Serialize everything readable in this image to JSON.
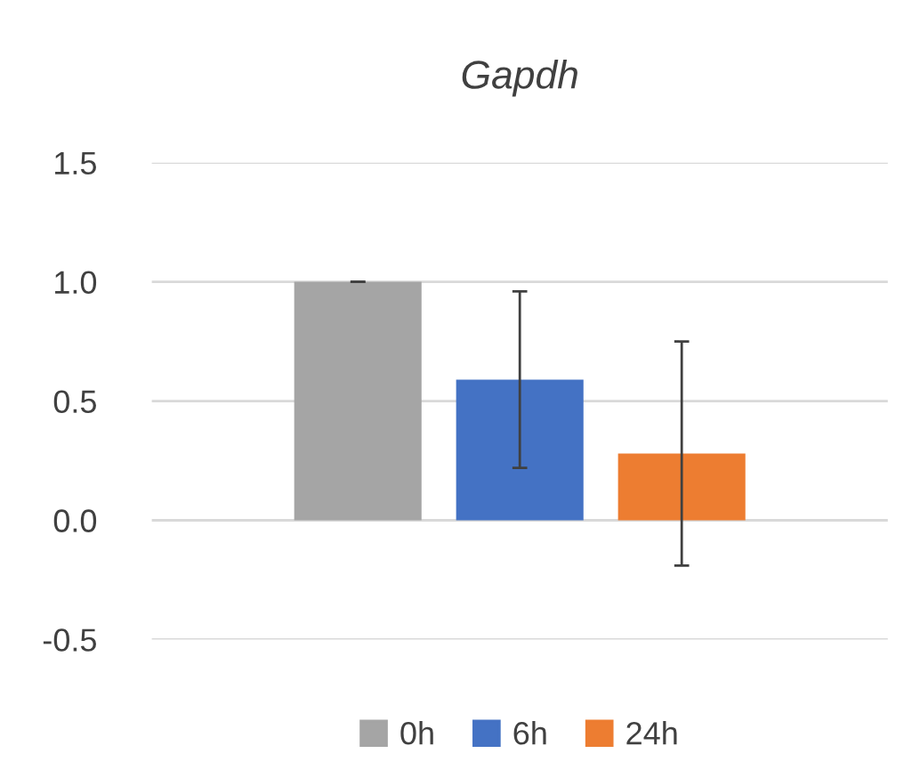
{
  "chart_data": {
    "type": "bar",
    "title": "Gapdh",
    "categories": [
      null
    ],
    "series": [
      {
        "name": "0h",
        "color": "#a5a5a5",
        "values": [
          1.0
        ],
        "errors": [
          0
        ]
      },
      {
        "name": "6h",
        "color": "#4472c4",
        "values": [
          0.59
        ],
        "errors": [
          0.37
        ]
      },
      {
        "name": "24h",
        "color": "#ed7d31",
        "values": [
          0.28
        ],
        "errors": [
          0.47
        ]
      }
    ],
    "ylim": [
      -0.5,
      1.5
    ],
    "yticks": [
      {
        "value": -0.5,
        "label": "-0.5"
      },
      {
        "value": 0,
        "label": "0.0"
      },
      {
        "value": 0.5,
        "label": "0.5"
      },
      {
        "value": 1.0,
        "label": "1.0"
      },
      {
        "value": 1.5,
        "label": "1.5"
      }
    ],
    "grid": "y",
    "legend": "bottom",
    "tick_labels": "y"
  }
}
